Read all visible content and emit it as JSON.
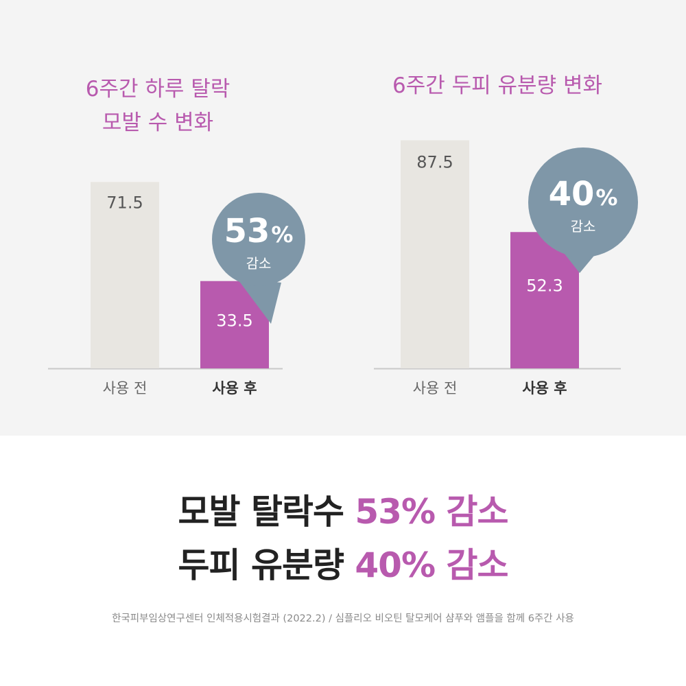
{
  "colors": {
    "panel_background": "#f4f4f4",
    "before_bar": "#e8e6e1",
    "after_bar": "#b85aae",
    "bubble": "#7f97a8",
    "title": "#b85aae",
    "headline_text": "#222222",
    "headline_accent": "#b85aae",
    "footnote": "#8a8a8a"
  },
  "chart_data": [
    {
      "type": "bar",
      "title_lines": [
        "6주간 하루 탈락",
        "모발 수 변화"
      ],
      "categories": [
        "사용 전",
        "사용 후"
      ],
      "values": [
        71.5,
        33.5
      ],
      "value_labels": [
        "71.5",
        "33.5"
      ],
      "ylim": [
        0,
        100
      ],
      "grid": false,
      "callout": {
        "value": "53",
        "unit": "%",
        "text": "감소"
      }
    },
    {
      "type": "bar",
      "title_lines": [
        "6주간 두피 유분량 변화"
      ],
      "categories": [
        "사용 전",
        "사용 후"
      ],
      "values": [
        87.5,
        52.3
      ],
      "value_labels": [
        "87.5",
        "52.3"
      ],
      "ylim": [
        0,
        100
      ],
      "grid": false,
      "callout": {
        "value": "40",
        "unit": "%",
        "text": "감소"
      }
    }
  ],
  "summary": [
    {
      "text": "모발 탈락수",
      "highlight": "53% 감소"
    },
    {
      "text": "두피 유분량",
      "highlight": "40% 감소"
    }
  ],
  "footnote": "한국피부임상연구센터 인체적용시험결과 (2022.2) / 심플리오 비오틴 탈모케어 샴푸와 앰플을 함께 6주간 사용"
}
